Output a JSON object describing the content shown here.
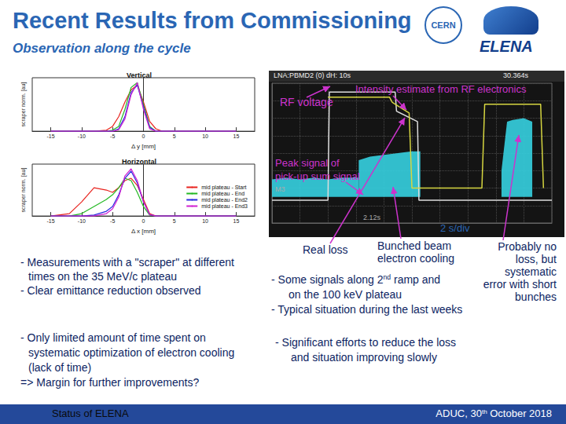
{
  "header": {
    "title": "Recent Results from Commissioning",
    "subtitle": "Observation along the cycle",
    "logos": [
      "CERN",
      "ELENA"
    ]
  },
  "chart_data": [
    {
      "type": "line",
      "title": "Vertical",
      "xlabel": "Δ y [mm]",
      "ylabel": "scraper norm. [au]",
      "x": [
        -15,
        -12,
        -10,
        -8,
        -6,
        -5,
        -4,
        -3,
        -2,
        -1,
        0,
        1,
        2,
        3,
        5,
        8,
        10,
        15
      ],
      "series": [
        {
          "color": "#e8231e",
          "values": [
            0,
            0,
            0,
            0,
            0.02,
            0.1,
            0.3,
            0.6,
            0.85,
            0.95,
            0.6,
            0.2,
            0.05,
            0,
            0,
            0,
            0,
            0
          ]
        },
        {
          "color": "#22b822",
          "values": [
            0,
            0,
            0,
            0,
            0,
            0.02,
            0.1,
            0.45,
            0.9,
            1.0,
            0.55,
            0.1,
            0,
            0,
            0,
            0,
            0,
            0
          ]
        },
        {
          "color": "#2a2ae0",
          "values": [
            0,
            0,
            0,
            0,
            0,
            0,
            0.05,
            0.3,
            0.8,
            0.95,
            0.5,
            0.08,
            0,
            0,
            0,
            0,
            0,
            0
          ]
        },
        {
          "color": "#d020d0",
          "values": [
            0,
            0,
            0,
            0,
            0,
            0,
            0.03,
            0.25,
            0.75,
            1.0,
            0.45,
            0.05,
            0,
            0,
            0,
            0,
            0,
            0
          ]
        }
      ],
      "xlim": [
        -18,
        18
      ],
      "xticks": [
        -15,
        -10,
        -5,
        0,
        5,
        10,
        15
      ],
      "ylim": [
        0,
        1.1
      ],
      "tick_labels": "x",
      "grid": false
    },
    {
      "type": "line",
      "title": "Horizontal",
      "xlabel": "Δ x [mm]",
      "ylabel": "scraper norm. [au]",
      "x": [
        -15,
        -12,
        -10,
        -8,
        -6,
        -5,
        -4,
        -3,
        -2,
        -1,
        0,
        1,
        2,
        3,
        5,
        8,
        10,
        15
      ],
      "series": [
        {
          "name": "mid plateau - Start",
          "color": "#e8231e",
          "values": [
            0,
            0.05,
            0.3,
            0.6,
            0.55,
            0.5,
            0.6,
            0.75,
            0.8,
            0.65,
            0.35,
            0.05,
            0,
            0,
            0,
            0,
            0,
            0
          ]
        },
        {
          "name": "mid plateau - End",
          "color": "#22b822",
          "values": [
            0,
            0,
            0.05,
            0.2,
            0.35,
            0.45,
            0.6,
            0.8,
            0.75,
            0.5,
            0.2,
            0.02,
            0,
            0,
            0,
            0,
            0,
            0
          ]
        },
        {
          "name": "mid plateau - End2",
          "color": "#2a2ae0",
          "values": [
            0,
            0,
            0,
            0.02,
            0.1,
            0.2,
            0.45,
            0.8,
            0.95,
            0.7,
            0.3,
            0.03,
            0,
            0,
            0,
            0,
            0,
            0
          ]
        },
        {
          "name": "mid plateau - End3",
          "color": "#d020d0",
          "values": [
            0,
            0,
            0,
            0,
            0.05,
            0.15,
            0.4,
            0.85,
            1.0,
            0.75,
            0.3,
            0.03,
            0,
            0,
            0,
            0,
            0,
            0
          ]
        }
      ],
      "xlim": [
        -18,
        18
      ],
      "xticks": [
        -15,
        -10,
        -5,
        0,
        5,
        10,
        15
      ],
      "ylim": [
        0,
        1.1
      ],
      "tick_labels": "x",
      "grid": false,
      "legend": "lower right"
    },
    {
      "type": "line",
      "xlim": [
        0,
        10
      ],
      "xticks": [
        0,
        1,
        2,
        3,
        4,
        5,
        6,
        7,
        8,
        9,
        10
      ],
      "ylim": [
        0,
        8
      ],
      "yticks": [
        0,
        1,
        2,
        3,
        4,
        5,
        6,
        7,
        8
      ],
      "tick_labels": false,
      "grid": true,
      "series": [
        {
          "type": "line",
          "color": "#dddddd",
          "x": [
            0,
            2.0,
            2.05,
            4.4,
            4.45,
            5.2,
            5.25,
            10
          ],
          "values": [
            1.3,
            1.3,
            7.5,
            7.5,
            6.4,
            5.8,
            1.3,
            1.3
          ]
        },
        {
          "type": "line",
          "color": "#d6d640",
          "x": [
            2.0,
            4.2,
            4.3,
            4.9,
            5.0,
            7.5,
            7.6,
            9.6,
            9.7
          ],
          "values": [
            7.2,
            7.2,
            6.9,
            6.3,
            2.0,
            2.0,
            6.8,
            6.8,
            2.0
          ]
        },
        {
          "type": "area",
          "color": "#35d0e0",
          "segments": [
            {
              "x": [
                0,
                0.5,
                1,
                1.5,
                2,
                2.5,
                3.1
              ],
              "lower": [
                1.5,
                1.5,
                1.5,
                1.5,
                1.5,
                1.5,
                1.5
              ],
              "upper": [
                2.5,
                2.6,
                2.5,
                2.6,
                2.5,
                2.6,
                2.6
              ]
            },
            {
              "x": [
                3.1,
                3.5,
                4,
                4.5,
                5,
                5.3
              ],
              "lower": [
                1.5,
                1.5,
                1.5,
                1.5,
                1.5,
                1.5
              ],
              "upper": [
                3.6,
                3.8,
                3.9,
                4.0,
                4.1,
                4.1
              ]
            },
            {
              "x": [
                8.2,
                8.4,
                8.6,
                9.0,
                9.3
              ],
              "lower": [
                1.5,
                1.5,
                1.5,
                1.5,
                1.5
              ],
              "upper": [
                3.0,
                5.8,
                5.9,
                6.0,
                5.8
              ]
            }
          ]
        }
      ],
      "annotations": [
        "LNA:PBMD2 (0)   dH: 10s",
        "30.364s",
        "M3",
        "2.12s"
      ]
    }
  ],
  "scope_annotations": {
    "intensity": "Intensity estimate from RF electronics",
    "rf_voltage": "RF voltage",
    "peak_signal": [
      "Peak signal of",
      "pick-up sum signal"
    ],
    "time_base": "2 s/div",
    "real_loss": "Real loss",
    "bunched": [
      "Bunched beam",
      "electron cooling"
    ],
    "probably": [
      "Probably no",
      "loss, but",
      "systematic",
      "error with short",
      "bunches"
    ]
  },
  "text": {
    "left_top": [
      "- Measurements with a \"scraper\" at different",
      "times on the 35 MeV/c plateau",
      "-   Clear emittance reduction observed"
    ],
    "right_top": [
      [
        {
          "t": "- Some signals along 2"
        },
        {
          "t": "nd",
          "sup": true
        },
        {
          "t": " ramp and"
        }
      ],
      "on the 100 keV plateau",
      "- Typical situation during the last weeks"
    ],
    "left_bottom": [
      "- Only limited amount of time spent on",
      "systematic optimization of electron cooling",
      "(lack of time)",
      "=> Margin for further improvements?"
    ],
    "right_bottom": [
      "- Significant efforts to reduce the loss",
      "and situation improving slowly"
    ]
  },
  "footer": {
    "left": "Status of ELENA",
    "right": [
      {
        "t": "ADUC, 30"
      },
      {
        "t": "th",
        "sup": true
      },
      {
        "t": " October 2018"
      }
    ]
  }
}
